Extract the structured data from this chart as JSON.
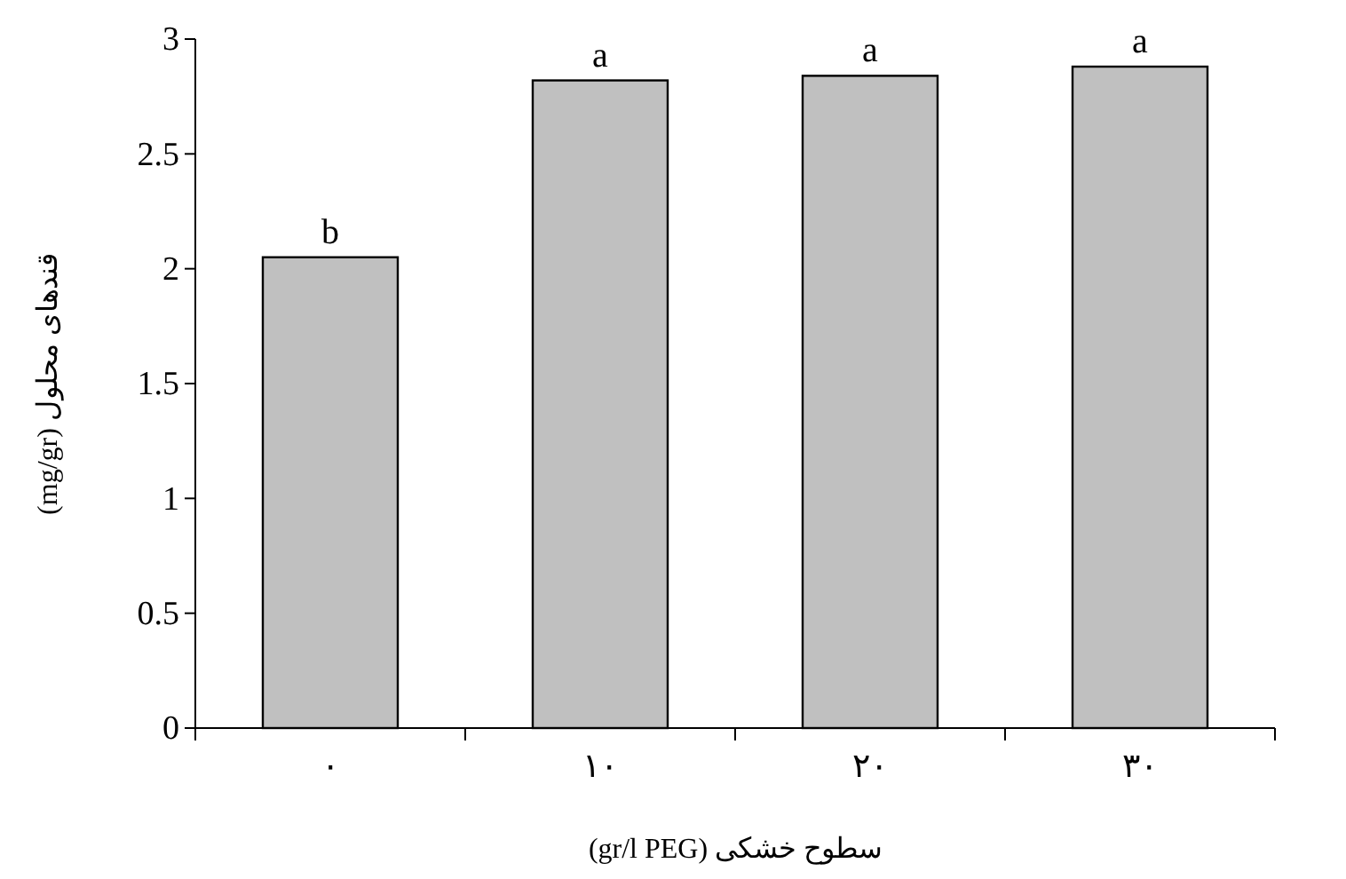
{
  "chart_data": {
    "type": "bar",
    "categories": [
      "۰",
      "۱۰",
      "۲۰",
      "۳۰"
    ],
    "values": [
      2.05,
      2.82,
      2.84,
      2.88
    ],
    "color": "#c0c0c0",
    "xlabel": "سطوح خشکی (gr/l PEG)",
    "ylabel": "قندهای محلول (mg/gr)",
    "ylim": [
      0,
      3
    ],
    "yticks": [
      0,
      0.5,
      1,
      1.5,
      2,
      2.5,
      3
    ],
    "annotations": [
      {
        "text": "b",
        "x": "۰",
        "y": 2.05
      },
      {
        "text": "a",
        "x": "۱۰",
        "y": 2.82
      },
      {
        "text": "a",
        "x": "۲۰",
        "y": 2.84
      },
      {
        "text": "a",
        "x": "۳۰",
        "y": 2.88
      }
    ],
    "grid": false
  }
}
